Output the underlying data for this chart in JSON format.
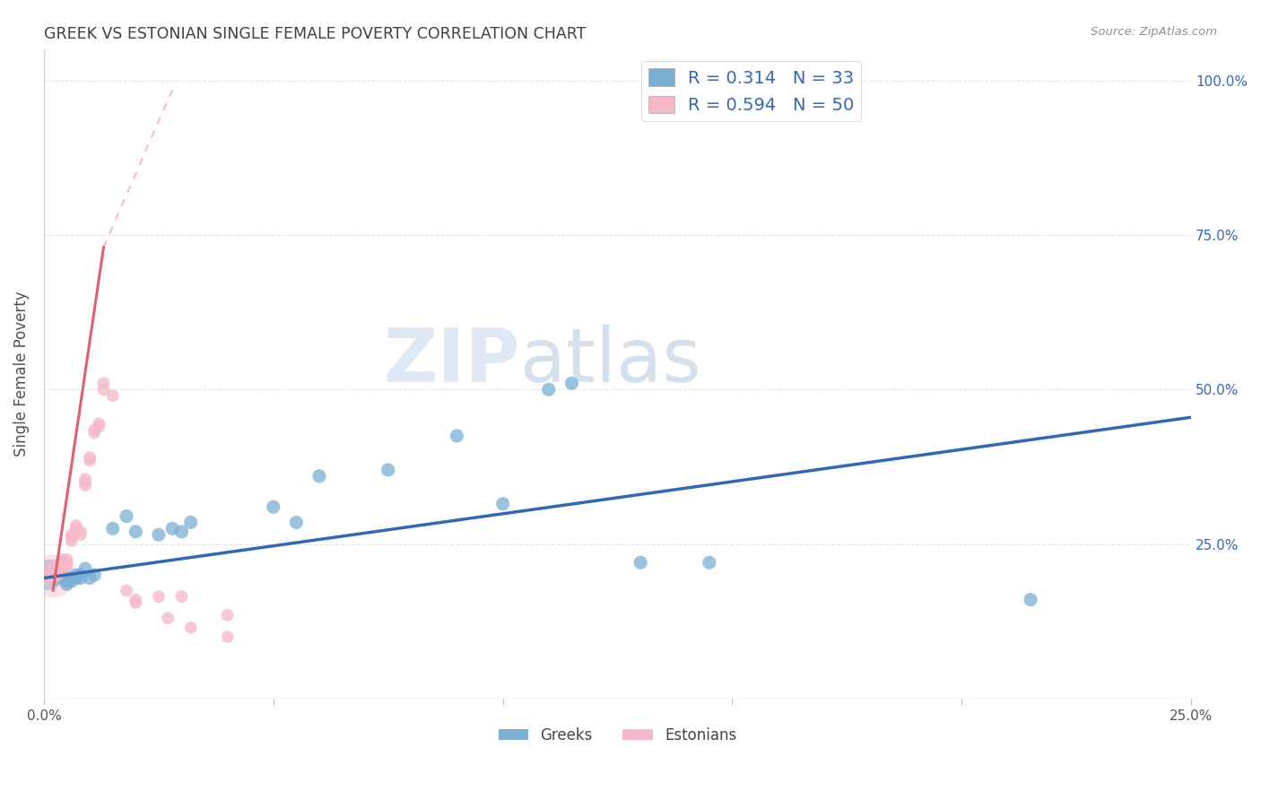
{
  "title": "GREEK VS ESTONIAN SINGLE FEMALE POVERTY CORRELATION CHART",
  "source": "Source: ZipAtlas.com",
  "ylabel": "Single Female Poverty",
  "legend_greek_R": "R = 0.314",
  "legend_greek_N": "N = 33",
  "legend_estonian_R": "R = 0.594",
  "legend_estonian_N": "N = 50",
  "watermark_zip": "ZIP",
  "watermark_atlas": "atlas",
  "blue_scatter_color": "#7BAFD4",
  "pink_scatter_color": "#F5B8C8",
  "blue_line_color": "#3568B0",
  "pink_line_color": "#E06070",
  "pink_dash_color": "#F0A0B0",
  "legend_text_color": "#3568B0",
  "title_color": "#404040",
  "source_color": "#909090",
  "greek_points": [
    [
      0.002,
      0.205
    ],
    [
      0.003,
      0.195
    ],
    [
      0.003,
      0.2
    ],
    [
      0.004,
      0.2
    ],
    [
      0.005,
      0.19
    ],
    [
      0.005,
      0.185
    ],
    [
      0.006,
      0.195
    ],
    [
      0.006,
      0.19
    ],
    [
      0.007,
      0.2
    ],
    [
      0.007,
      0.195
    ],
    [
      0.008,
      0.195
    ],
    [
      0.008,
      0.2
    ],
    [
      0.009,
      0.21
    ],
    [
      0.01,
      0.195
    ],
    [
      0.011,
      0.2
    ],
    [
      0.015,
      0.275
    ],
    [
      0.018,
      0.295
    ],
    [
      0.02,
      0.27
    ],
    [
      0.025,
      0.265
    ],
    [
      0.028,
      0.275
    ],
    [
      0.03,
      0.27
    ],
    [
      0.032,
      0.285
    ],
    [
      0.05,
      0.31
    ],
    [
      0.055,
      0.285
    ],
    [
      0.06,
      0.36
    ],
    [
      0.075,
      0.37
    ],
    [
      0.09,
      0.425
    ],
    [
      0.1,
      0.315
    ],
    [
      0.11,
      0.5
    ],
    [
      0.115,
      0.51
    ],
    [
      0.13,
      0.22
    ],
    [
      0.145,
      0.22
    ],
    [
      0.215,
      0.16
    ]
  ],
  "estonian_points": [
    [
      0.0005,
      0.195
    ],
    [
      0.001,
      0.195
    ],
    [
      0.001,
      0.2
    ],
    [
      0.001,
      0.205
    ],
    [
      0.0015,
      0.2
    ],
    [
      0.002,
      0.195
    ],
    [
      0.002,
      0.2
    ],
    [
      0.002,
      0.21
    ],
    [
      0.002,
      0.215
    ],
    [
      0.003,
      0.2
    ],
    [
      0.003,
      0.205
    ],
    [
      0.003,
      0.21
    ],
    [
      0.003,
      0.215
    ],
    [
      0.0035,
      0.22
    ],
    [
      0.004,
      0.21
    ],
    [
      0.004,
      0.215
    ],
    [
      0.004,
      0.22
    ],
    [
      0.004,
      0.225
    ],
    [
      0.005,
      0.215
    ],
    [
      0.005,
      0.22
    ],
    [
      0.005,
      0.225
    ],
    [
      0.006,
      0.255
    ],
    [
      0.006,
      0.26
    ],
    [
      0.006,
      0.265
    ],
    [
      0.007,
      0.27
    ],
    [
      0.007,
      0.275
    ],
    [
      0.007,
      0.28
    ],
    [
      0.008,
      0.265
    ],
    [
      0.008,
      0.27
    ],
    [
      0.009,
      0.345
    ],
    [
      0.009,
      0.35
    ],
    [
      0.009,
      0.355
    ],
    [
      0.01,
      0.385
    ],
    [
      0.01,
      0.39
    ],
    [
      0.011,
      0.43
    ],
    [
      0.011,
      0.435
    ],
    [
      0.012,
      0.44
    ],
    [
      0.012,
      0.445
    ],
    [
      0.013,
      0.5
    ],
    [
      0.013,
      0.51
    ],
    [
      0.015,
      0.49
    ],
    [
      0.018,
      0.175
    ],
    [
      0.02,
      0.155
    ],
    [
      0.02,
      0.16
    ],
    [
      0.025,
      0.165
    ],
    [
      0.027,
      0.13
    ],
    [
      0.03,
      0.165
    ],
    [
      0.032,
      0.115
    ],
    [
      0.04,
      0.135
    ],
    [
      0.04,
      0.1
    ]
  ],
  "blue_line": [
    [
      0.0,
      0.195
    ],
    [
      0.25,
      0.455
    ]
  ],
  "pink_line_solid": [
    [
      0.002,
      0.175
    ],
    [
      0.013,
      0.73
    ]
  ],
  "pink_line_dash": [
    [
      0.013,
      0.73
    ],
    [
      0.028,
      0.985
    ]
  ],
  "xlim": [
    0,
    0.25
  ],
  "ylim": [
    0,
    1.05
  ],
  "background_color": "#FFFFFF",
  "grid_color": "#DEDEDE"
}
